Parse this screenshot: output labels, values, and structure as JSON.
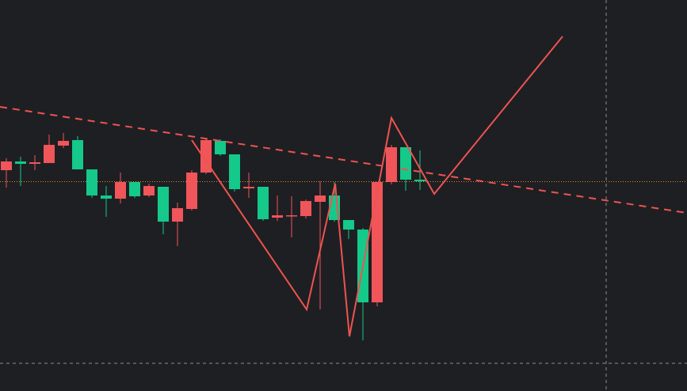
{
  "chart_data": {
    "type": "candlestick",
    "ylim": [
      0,
      494
    ],
    "up_color": "#f0555a",
    "down_color": "#14c98a",
    "open": [
      279,
      290,
      287,
      288,
      310,
      317,
      280,
      247,
      243,
      264,
      247,
      258,
      214,
      230,
      276,
      316,
      299,
      256,
      258,
      219,
      221,
      221,
      239,
      247,
      216,
      204,
      112,
      264,
      308,
      267
    ],
    "high": [
      294,
      296,
      298,
      324,
      326,
      322,
      280,
      259,
      276,
      264,
      262,
      258,
      238,
      279,
      319,
      318,
      299,
      276,
      258,
      247,
      246,
      242,
      265,
      264,
      216,
      206,
      264,
      311,
      308,
      304
    ],
    "low": [
      257,
      259,
      279,
      288,
      307,
      280,
      244,
      220,
      237,
      244,
      245,
      198,
      183,
      228,
      274,
      297,
      252,
      244,
      215,
      215,
      194,
      218,
      103,
      214,
      192,
      64,
      107,
      261,
      253,
      254
    ],
    "close": [
      290,
      287,
      289,
      311,
      316,
      280,
      247,
      243,
      264,
      246,
      259,
      214,
      231,
      276,
      317,
      299,
      255,
      258,
      217,
      222,
      222,
      240,
      247,
      216,
      204,
      112,
      264,
      308,
      267,
      265
    ]
  }
}
